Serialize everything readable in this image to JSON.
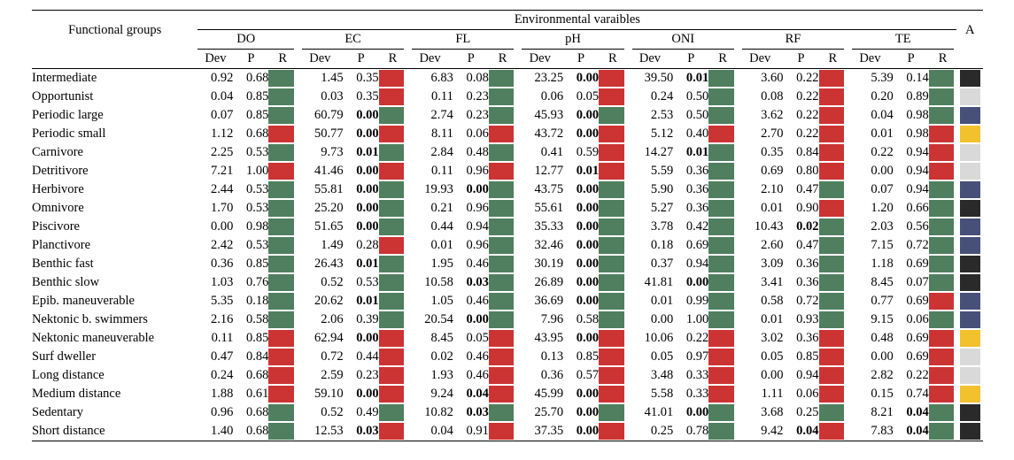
{
  "header": {
    "title": "Environmental varaibles",
    "row_label": "Functional groups",
    "last_col": "A",
    "vars": [
      "DO",
      "EC",
      "FL",
      "pH",
      "ONI",
      "RF",
      "TE"
    ],
    "sub": [
      "Dev",
      "P",
      "R"
    ]
  },
  "colors": {
    "R": "#cc3333",
    "G": "#4f7f5e",
    "Y": "#f2c12e",
    "L": "#d9d9d9",
    "N": "#465079",
    "K": "#2a2a2a"
  },
  "rows": [
    {
      "group": "Intermediate",
      "A": "K",
      "cells": [
        [
          "0.92",
          "0.68",
          0,
          "G"
        ],
        [
          "1.45",
          "0.35",
          0,
          "R"
        ],
        [
          "6.83",
          "0.08",
          0,
          "G"
        ],
        [
          "23.25",
          "0.00",
          1,
          "R"
        ],
        [
          "39.50",
          "0.01",
          1,
          "G"
        ],
        [
          "3.60",
          "0.22",
          0,
          "R"
        ],
        [
          "5.39",
          "0.14",
          0,
          "G"
        ]
      ]
    },
    {
      "group": "Opportunist",
      "A": "L",
      "cells": [
        [
          "0.04",
          "0.85",
          0,
          "G"
        ],
        [
          "0.03",
          "0.35",
          0,
          "R"
        ],
        [
          "0.11",
          "0.23",
          0,
          "G"
        ],
        [
          "0.06",
          "0.05",
          0,
          "R"
        ],
        [
          "0.24",
          "0.50",
          0,
          "G"
        ],
        [
          "0.08",
          "0.22",
          0,
          "R"
        ],
        [
          "0.20",
          "0.89",
          0,
          "G"
        ]
      ]
    },
    {
      "group": "Periodic large",
      "A": "N",
      "cells": [
        [
          "0.07",
          "0.85",
          0,
          "G"
        ],
        [
          "60.79",
          "0.00",
          1,
          "G"
        ],
        [
          "2.74",
          "0.23",
          0,
          "G"
        ],
        [
          "45.93",
          "0.00",
          1,
          "G"
        ],
        [
          "2.53",
          "0.50",
          0,
          "G"
        ],
        [
          "3.62",
          "0.22",
          0,
          "R"
        ],
        [
          "0.04",
          "0.98",
          0,
          "G"
        ]
      ]
    },
    {
      "group": "Periodic small",
      "A": "Y",
      "cells": [
        [
          "1.12",
          "0.68",
          0,
          "R"
        ],
        [
          "50.77",
          "0.00",
          1,
          "R"
        ],
        [
          "8.11",
          "0.06",
          0,
          "R"
        ],
        [
          "43.72",
          "0.00",
          1,
          "R"
        ],
        [
          "5.12",
          "0.40",
          0,
          "R"
        ],
        [
          "2.70",
          "0.22",
          0,
          "R"
        ],
        [
          "0.01",
          "0.98",
          0,
          "R"
        ]
      ]
    },
    {
      "group": "Carnivore",
      "A": "L",
      "cells": [
        [
          "2.25",
          "0.53",
          0,
          "G"
        ],
        [
          "9.73",
          "0.01",
          1,
          "G"
        ],
        [
          "2.84",
          "0.48",
          0,
          "G"
        ],
        [
          "0.41",
          "0.59",
          0,
          "R"
        ],
        [
          "14.27",
          "0.01",
          1,
          "G"
        ],
        [
          "0.35",
          "0.84",
          0,
          "R"
        ],
        [
          "0.22",
          "0.94",
          0,
          "R"
        ]
      ]
    },
    {
      "group": "Detritivore",
      "A": "L",
      "cells": [
        [
          "7.21",
          "1.00",
          0,
          "R"
        ],
        [
          "41.46",
          "0.00",
          1,
          "R"
        ],
        [
          "0.11",
          "0.96",
          0,
          "R"
        ],
        [
          "12.77",
          "0.01",
          1,
          "R"
        ],
        [
          "5.59",
          "0.36",
          0,
          "G"
        ],
        [
          "0.69",
          "0.80",
          0,
          "R"
        ],
        [
          "0.00",
          "0.94",
          0,
          "R"
        ]
      ]
    },
    {
      "group": "Herbivore",
      "A": "N",
      "cells": [
        [
          "2.44",
          "0.53",
          0,
          "G"
        ],
        [
          "55.81",
          "0.00",
          1,
          "G"
        ],
        [
          "19.93",
          "0.00",
          1,
          "G"
        ],
        [
          "43.75",
          "0.00",
          1,
          "G"
        ],
        [
          "5.90",
          "0.36",
          0,
          "G"
        ],
        [
          "2.10",
          "0.47",
          0,
          "G"
        ],
        [
          "0.07",
          "0.94",
          0,
          "G"
        ]
      ]
    },
    {
      "group": "Omnivore",
      "A": "K",
      "cells": [
        [
          "1.70",
          "0.53",
          0,
          "G"
        ],
        [
          "25.20",
          "0.00",
          1,
          "G"
        ],
        [
          "0.21",
          "0.96",
          0,
          "G"
        ],
        [
          "55.61",
          "0.00",
          1,
          "G"
        ],
        [
          "5.27",
          "0.36",
          0,
          "G"
        ],
        [
          "0.01",
          "0.90",
          0,
          "R"
        ],
        [
          "1.20",
          "0.66",
          0,
          "G"
        ]
      ]
    },
    {
      "group": "Piscivore",
      "A": "N",
      "cells": [
        [
          "0.00",
          "0.98",
          0,
          "G"
        ],
        [
          "51.65",
          "0.00",
          1,
          "G"
        ],
        [
          "0.44",
          "0.94",
          0,
          "G"
        ],
        [
          "35.33",
          "0.00",
          1,
          "G"
        ],
        [
          "3.78",
          "0.42",
          0,
          "G"
        ],
        [
          "10.43",
          "0.02",
          1,
          "G"
        ],
        [
          "2.03",
          "0.56",
          0,
          "G"
        ]
      ]
    },
    {
      "group": "Planctivore",
      "A": "N",
      "cells": [
        [
          "2.42",
          "0.53",
          0,
          "G"
        ],
        [
          "1.49",
          "0.28",
          0,
          "R"
        ],
        [
          "0.01",
          "0.96",
          0,
          "G"
        ],
        [
          "32.46",
          "0.00",
          1,
          "G"
        ],
        [
          "0.18",
          "0.69",
          0,
          "G"
        ],
        [
          "2.60",
          "0.47",
          0,
          "G"
        ],
        [
          "7.15",
          "0.72",
          0,
          "G"
        ]
      ]
    },
    {
      "group": "Benthic fast",
      "A": "K",
      "cells": [
        [
          "0.36",
          "0.85",
          0,
          "G"
        ],
        [
          "26.43",
          "0.01",
          1,
          "G"
        ],
        [
          "1.95",
          "0.46",
          0,
          "G"
        ],
        [
          "30.19",
          "0.00",
          1,
          "G"
        ],
        [
          "0.37",
          "0.94",
          0,
          "G"
        ],
        [
          "3.09",
          "0.36",
          0,
          "G"
        ],
        [
          "1.18",
          "0.69",
          0,
          "G"
        ]
      ]
    },
    {
      "group": "Benthic slow",
      "A": "K",
      "cells": [
        [
          "1.03",
          "0.76",
          0,
          "G"
        ],
        [
          "0.52",
          "0.53",
          0,
          "G"
        ],
        [
          "10.58",
          "0.03",
          1,
          "G"
        ],
        [
          "26.89",
          "0.00",
          1,
          "G"
        ],
        [
          "41.81",
          "0.00",
          1,
          "G"
        ],
        [
          "3.41",
          "0.36",
          0,
          "G"
        ],
        [
          "8.45",
          "0.07",
          0,
          "G"
        ]
      ]
    },
    {
      "group": "Epib. maneuverable",
      "A": "N",
      "cells": [
        [
          "5.35",
          "0.18",
          0,
          "G"
        ],
        [
          "20.62",
          "0.01",
          1,
          "G"
        ],
        [
          "1.05",
          "0.46",
          0,
          "G"
        ],
        [
          "36.69",
          "0.00",
          1,
          "G"
        ],
        [
          "0.01",
          "0.99",
          0,
          "G"
        ],
        [
          "0.58",
          "0.72",
          0,
          "G"
        ],
        [
          "0.77",
          "0.69",
          0,
          "R"
        ]
      ]
    },
    {
      "group": "Nektonic b. swimmers",
      "A": "N",
      "cells": [
        [
          "2.16",
          "0.58",
          0,
          "G"
        ],
        [
          "2.06",
          "0.39",
          0,
          "G"
        ],
        [
          "20.54",
          "0.00",
          1,
          "G"
        ],
        [
          "7.96",
          "0.58",
          0,
          "G"
        ],
        [
          "0.00",
          "1.00",
          0,
          "G"
        ],
        [
          "0.01",
          "0.93",
          0,
          "G"
        ],
        [
          "9.15",
          "0.06",
          0,
          "G"
        ]
      ]
    },
    {
      "group": "Nektonic maneuverable",
      "A": "Y",
      "cells": [
        [
          "0.11",
          "0.85",
          0,
          "R"
        ],
        [
          "62.94",
          "0.00",
          1,
          "R"
        ],
        [
          "8.45",
          "0.05",
          0,
          "R"
        ],
        [
          "43.95",
          "0.00",
          1,
          "R"
        ],
        [
          "10.06",
          "0.22",
          0,
          "R"
        ],
        [
          "3.02",
          "0.36",
          0,
          "R"
        ],
        [
          "0.48",
          "0.69",
          0,
          "R"
        ]
      ]
    },
    {
      "group": "Surf dweller",
      "A": "L",
      "cells": [
        [
          "0.47",
          "0.84",
          0,
          "R"
        ],
        [
          "0.72",
          "0.44",
          0,
          "R"
        ],
        [
          "0.02",
          "0.46",
          0,
          "R"
        ],
        [
          "0.13",
          "0.85",
          0,
          "R"
        ],
        [
          "0.05",
          "0.97",
          0,
          "R"
        ],
        [
          "0.05",
          "0.85",
          0,
          "R"
        ],
        [
          "0.00",
          "0.69",
          0,
          "R"
        ]
      ]
    },
    {
      "group": "Long distance",
      "A": "L",
      "cells": [
        [
          "0.24",
          "0.68",
          0,
          "R"
        ],
        [
          "2.59",
          "0.23",
          0,
          "R"
        ],
        [
          "1.93",
          "0.46",
          0,
          "R"
        ],
        [
          "0.36",
          "0.57",
          0,
          "R"
        ],
        [
          "3.48",
          "0.33",
          0,
          "R"
        ],
        [
          "0.00",
          "0.94",
          0,
          "R"
        ],
        [
          "2.82",
          "0.22",
          0,
          "R"
        ]
      ]
    },
    {
      "group": "Medium distance",
      "A": "Y",
      "cells": [
        [
          "1.88",
          "0.61",
          0,
          "R"
        ],
        [
          "59.10",
          "0.00",
          1,
          "R"
        ],
        [
          "9.24",
          "0.04",
          1,
          "R"
        ],
        [
          "45.99",
          "0.00",
          1,
          "R"
        ],
        [
          "5.58",
          "0.33",
          0,
          "R"
        ],
        [
          "1.11",
          "0.06",
          0,
          "R"
        ],
        [
          "0.15",
          "0.74",
          0,
          "R"
        ]
      ]
    },
    {
      "group": "Sedentary",
      "A": "K",
      "cells": [
        [
          "0.96",
          "0.68",
          0,
          "G"
        ],
        [
          "0.52",
          "0.49",
          0,
          "G"
        ],
        [
          "10.82",
          "0.03",
          1,
          "G"
        ],
        [
          "25.70",
          "0.00",
          1,
          "G"
        ],
        [
          "41.01",
          "0.00",
          1,
          "G"
        ],
        [
          "3.68",
          "0.25",
          0,
          "G"
        ],
        [
          "8.21",
          "0.04",
          1,
          "G"
        ]
      ]
    },
    {
      "group": "Short distance",
      "A": "K",
      "cells": [
        [
          "1.40",
          "0.68",
          0,
          "G"
        ],
        [
          "12.53",
          "0.03",
          1,
          "R"
        ],
        [
          "0.04",
          "0.91",
          0,
          "R"
        ],
        [
          "37.35",
          "0.00",
          1,
          "R"
        ],
        [
          "0.25",
          "0.78",
          0,
          "G"
        ],
        [
          "9.42",
          "0.04",
          1,
          "R"
        ],
        [
          "7.83",
          "0.04",
          1,
          "G"
        ]
      ]
    }
  ]
}
